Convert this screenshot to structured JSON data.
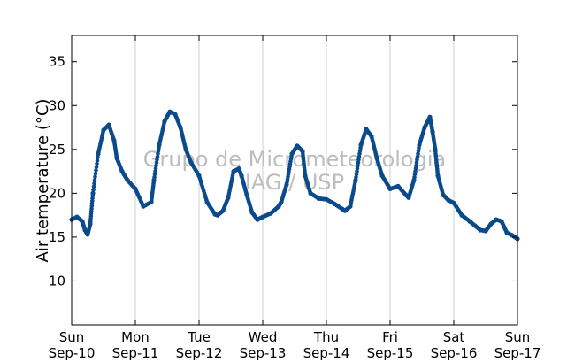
{
  "chart_data": {
    "type": "scatter",
    "ylabel": "Air temperature (°C)",
    "ylim": [
      5,
      38
    ],
    "yticks": [
      10,
      15,
      20,
      25,
      30,
      35
    ],
    "xlim": [
      "2023-09-10T00:00",
      "2023-09-17T00:00"
    ],
    "xticks": [
      {
        "date": "2023-09-10T00:00",
        "day": "Sun",
        "label": "Sep-10"
      },
      {
        "date": "2023-09-11T00:00",
        "day": "Mon",
        "label": "Sep-11"
      },
      {
        "date": "2023-09-12T00:00",
        "day": "Tue",
        "label": "Sep-12"
      },
      {
        "date": "2023-09-13T00:00",
        "day": "Wed",
        "label": "Sep-13"
      },
      {
        "date": "2023-09-14T00:00",
        "day": "Thu",
        "label": "Sep-14"
      },
      {
        "date": "2023-09-15T00:00",
        "day": "Fri",
        "label": "Sep-15"
      },
      {
        "date": "2023-09-16T00:00",
        "day": "Sat",
        "label": "Sep-16"
      },
      {
        "date": "2023-09-17T00:00",
        "day": "Sun",
        "label": "Sep-17"
      }
    ],
    "grid": "vertical",
    "marker_color": "#0b4a8b",
    "watermark": [
      "Grupo de Micrometeorologia",
      "IAG / USP"
    ],
    "series": [
      {
        "x": [
          "2023-09-10T00:00",
          "2023-09-10T02:00",
          "2023-09-10T04:00",
          "2023-09-10T05:00",
          "2023-09-10T06:00",
          "2023-09-10T07:00",
          "2023-09-10T08:00",
          "2023-09-10T10:00",
          "2023-09-10T12:00",
          "2023-09-10T14:00",
          "2023-09-10T16:00",
          "2023-09-10T17:00",
          "2023-09-10T19:00",
          "2023-09-10T21:00",
          "2023-09-11T00:00",
          "2023-09-11T03:00",
          "2023-09-11T06:00",
          "2023-09-11T07:00",
          "2023-09-11T09:00",
          "2023-09-11T11:00",
          "2023-09-11T13:00",
          "2023-09-11T15:00",
          "2023-09-11T17:00",
          "2023-09-11T19:00",
          "2023-09-11T21:00",
          "2023-09-12T00:00",
          "2023-09-12T03:00",
          "2023-09-12T06:00",
          "2023-09-12T07:00",
          "2023-09-12T09:00",
          "2023-09-12T11:00",
          "2023-09-12T13:00",
          "2023-09-12T15:00",
          "2023-09-12T16:00",
          "2023-09-12T18:00",
          "2023-09-12T20:00",
          "2023-09-12T22:00",
          "2023-09-13T00:00",
          "2023-09-13T03:00",
          "2023-09-13T06:00",
          "2023-09-13T07:00",
          "2023-09-13T09:00",
          "2023-09-13T11:00",
          "2023-09-13T13:00",
          "2023-09-13T15:00",
          "2023-09-13T16:00",
          "2023-09-13T18:00",
          "2023-09-13T21:00",
          "2023-09-14T00:00",
          "2023-09-14T03:00",
          "2023-09-14T06:00",
          "2023-09-14T07:00",
          "2023-09-14T09:00",
          "2023-09-14T11:00",
          "2023-09-14T13:00",
          "2023-09-14T15:00",
          "2023-09-14T17:00",
          "2023-09-14T19:00",
          "2023-09-14T21:00",
          "2023-09-15T00:00",
          "2023-09-15T03:00",
          "2023-09-15T06:00",
          "2023-09-15T07:00",
          "2023-09-15T09:00",
          "2023-09-15T11:00",
          "2023-09-15T13:00",
          "2023-09-15T15:00",
          "2023-09-15T16:00",
          "2023-09-15T17:00",
          "2023-09-15T18:00",
          "2023-09-15T20:00",
          "2023-09-15T22:00",
          "2023-09-16T00:00",
          "2023-09-16T03:00",
          "2023-09-16T06:00",
          "2023-09-16T08:00",
          "2023-09-16T10:00",
          "2023-09-16T12:00",
          "2023-09-16T14:00",
          "2023-09-16T16:00",
          "2023-09-16T18:00",
          "2023-09-16T20:00",
          "2023-09-16T22:00",
          "2023-09-17T00:00"
        ],
        "values": [
          17.0,
          17.3,
          16.8,
          15.8,
          15.3,
          16.5,
          20.0,
          24.5,
          27.2,
          27.8,
          26.0,
          24.0,
          22.5,
          21.5,
          20.5,
          18.5,
          19.0,
          21.5,
          25.5,
          28.2,
          29.3,
          29.0,
          27.5,
          25.0,
          23.5,
          22.0,
          19.0,
          17.6,
          17.5,
          18.0,
          19.5,
          22.5,
          22.8,
          22.0,
          19.8,
          17.8,
          17.0,
          17.3,
          17.7,
          18.5,
          19.0,
          21.0,
          24.5,
          25.4,
          24.8,
          22.0,
          20.0,
          19.4,
          19.3,
          18.8,
          18.2,
          18.0,
          18.5,
          21.5,
          25.5,
          27.3,
          26.5,
          24.0,
          22.0,
          20.5,
          20.8,
          19.8,
          19.5,
          21.5,
          25.5,
          27.5,
          28.7,
          27.0,
          25.0,
          22.0,
          19.8,
          19.2,
          18.9,
          17.5,
          16.8,
          16.3,
          15.8,
          15.7,
          16.5,
          17.0,
          16.8,
          15.5,
          15.2,
          14.8
        ]
      }
    ]
  }
}
